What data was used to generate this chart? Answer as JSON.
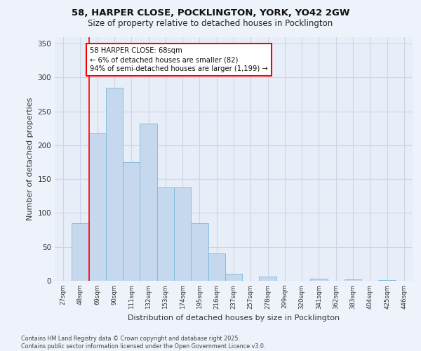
{
  "title_line1": "58, HARPER CLOSE, POCKLINGTON, YORK, YO42 2GW",
  "title_line2": "Size of property relative to detached houses in Pocklington",
  "xlabel": "Distribution of detached houses by size in Pocklington",
  "ylabel": "Number of detached properties",
  "categories": [
    "27sqm",
    "48sqm",
    "69sqm",
    "90sqm",
    "111sqm",
    "132sqm",
    "153sqm",
    "174sqm",
    "195sqm",
    "216sqm",
    "237sqm",
    "257sqm",
    "278sqm",
    "299sqm",
    "320sqm",
    "341sqm",
    "362sqm",
    "383sqm",
    "404sqm",
    "425sqm",
    "446sqm"
  ],
  "values": [
    0,
    85,
    218,
    285,
    175,
    232,
    138,
    138,
    85,
    40,
    10,
    0,
    6,
    0,
    0,
    3,
    0,
    2,
    0,
    1,
    0
  ],
  "bar_color": "#c5d8ed",
  "bar_edge_color": "#7ab8d8",
  "grid_color": "#ccd6e8",
  "background_color": "#e8eef8",
  "fig_background_color": "#eef2fa",
  "annotation_text": "58 HARPER CLOSE: 68sqm\n← 6% of detached houses are smaller (82)\n94% of semi-detached houses are larger (1,199) →",
  "annotation_box_color": "white",
  "annotation_box_edge": "red",
  "vline_x": 1.5,
  "vline_color": "red",
  "ylim": [
    0,
    360
  ],
  "yticks": [
    0,
    50,
    100,
    150,
    200,
    250,
    300,
    350
  ],
  "footer": "Contains HM Land Registry data © Crown copyright and database right 2025.\nContains public sector information licensed under the Open Government Licence v3.0."
}
